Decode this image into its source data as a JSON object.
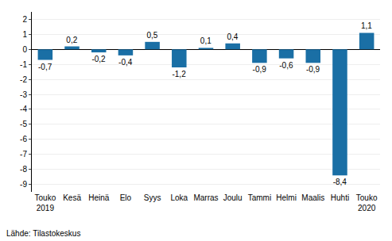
{
  "chart_data": {
    "type": "bar",
    "categories": [
      "Touko\n2019",
      "Kesä",
      "Heinä",
      "Elo",
      "Syys",
      "Loka",
      "Marras",
      "Joulu",
      "Tammi",
      "Helmi",
      "Maalis",
      "Huhti",
      "Touko\n2020"
    ],
    "values": [
      -0.7,
      0.2,
      -0.2,
      -0.4,
      0.5,
      -1.2,
      0.1,
      0.4,
      -0.9,
      -0.6,
      -0.9,
      -8.4,
      1.1
    ],
    "value_labels": [
      "-0,7",
      "0,2",
      "-0,2",
      "-0,4",
      "0,5",
      "-1,2",
      "0,1",
      "0,4",
      "-0,9",
      "-0,6",
      "-0,9",
      "-8,4",
      "1,1"
    ],
    "data_labels": true,
    "color": "#1a6fa5",
    "ylim": [
      -9.5,
      2.5
    ],
    "yticks": [
      -9,
      -8,
      -7,
      -6,
      -5,
      -4,
      -3,
      -2,
      -1,
      0,
      1,
      2
    ],
    "grid": true,
    "annotations": [
      "Lähde: Tilastokeskus"
    ]
  }
}
